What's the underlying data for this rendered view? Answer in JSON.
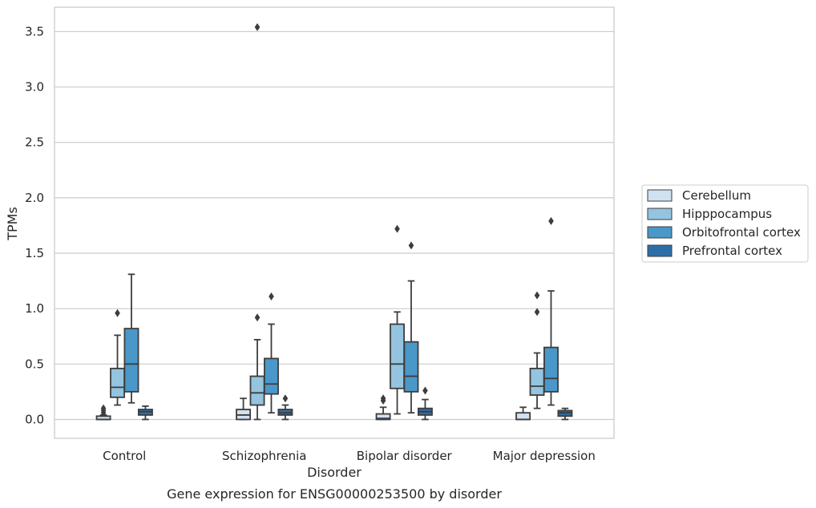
{
  "caption": "Gene expression for ENSG00000253500 by disorder",
  "chart_data": {
    "type": "boxplot",
    "title": "",
    "xlabel": "Disorder",
    "ylabel": "TPMs",
    "ylim": [
      -0.17,
      3.72
    ],
    "yticks": [
      0.0,
      0.5,
      1.0,
      1.5,
      2.0,
      2.5,
      3.0,
      3.5
    ],
    "ytick_labels": [
      "0.0",
      "0.5",
      "1.0",
      "1.5",
      "2.0",
      "2.5",
      "3.0",
      "3.5"
    ],
    "grid": "horizontal",
    "legend_position": "right",
    "categories": [
      "Control",
      "Schizophrenia",
      "Bipolar disorder",
      "Major depression"
    ],
    "series": [
      {
        "name": "Cerebellum",
        "color": "#d0e1f2",
        "boxes": [
          {
            "whislo": 0.0,
            "q1": 0.0,
            "med": 0.0,
            "q3": 0.03,
            "whishi": 0.04,
            "fliers": [
              0.06,
              0.08,
              0.1
            ]
          },
          {
            "whislo": 0.0,
            "q1": 0.0,
            "med": 0.04,
            "q3": 0.09,
            "whishi": 0.19,
            "fliers": []
          },
          {
            "whislo": 0.0,
            "q1": 0.0,
            "med": 0.01,
            "q3": 0.05,
            "whishi": 0.11,
            "fliers": [
              0.17,
              0.19
            ]
          },
          {
            "whislo": 0.0,
            "q1": 0.0,
            "med": 0.0,
            "q3": 0.06,
            "whishi": 0.11,
            "fliers": []
          }
        ]
      },
      {
        "name": "Hipppocampus",
        "color": "#94c4df",
        "boxes": [
          {
            "whislo": 0.13,
            "q1": 0.2,
            "med": 0.29,
            "q3": 0.46,
            "whishi": 0.76,
            "fliers": [
              0.96
            ]
          },
          {
            "whislo": 0.0,
            "q1": 0.13,
            "med": 0.24,
            "q3": 0.39,
            "whishi": 0.72,
            "fliers": [
              0.92,
              3.54
            ]
          },
          {
            "whislo": 0.05,
            "q1": 0.28,
            "med": 0.5,
            "q3": 0.86,
            "whishi": 0.97,
            "fliers": [
              1.72
            ]
          },
          {
            "whislo": 0.1,
            "q1": 0.22,
            "med": 0.3,
            "q3": 0.46,
            "whishi": 0.6,
            "fliers": [
              0.97,
              1.12
            ]
          }
        ]
      },
      {
        "name": "Orbitofrontal cortex",
        "color": "#4a98c9",
        "boxes": [
          {
            "whislo": 0.15,
            "q1": 0.25,
            "med": 0.5,
            "q3": 0.82,
            "whishi": 1.31,
            "fliers": []
          },
          {
            "whislo": 0.06,
            "q1": 0.23,
            "med": 0.32,
            "q3": 0.55,
            "whishi": 0.86,
            "fliers": [
              1.11
            ]
          },
          {
            "whislo": 0.06,
            "q1": 0.25,
            "med": 0.39,
            "q3": 0.7,
            "whishi": 1.25,
            "fliers": [
              1.57
            ]
          },
          {
            "whislo": 0.13,
            "q1": 0.25,
            "med": 0.37,
            "q3": 0.65,
            "whishi": 1.16,
            "fliers": [
              1.79
            ]
          }
        ]
      },
      {
        "name": "Prefrontal cortex",
        "color": "#2e6ea8",
        "boxes": [
          {
            "whislo": 0.0,
            "q1": 0.04,
            "med": 0.07,
            "q3": 0.09,
            "whishi": 0.12,
            "fliers": []
          },
          {
            "whislo": 0.0,
            "q1": 0.04,
            "med": 0.06,
            "q3": 0.09,
            "whishi": 0.13,
            "fliers": [
              0.19
            ]
          },
          {
            "whislo": 0.0,
            "q1": 0.04,
            "med": 0.07,
            "q3": 0.1,
            "whishi": 0.18,
            "fliers": [
              0.26
            ]
          },
          {
            "whislo": 0.0,
            "q1": 0.03,
            "med": 0.06,
            "q3": 0.08,
            "whishi": 0.1,
            "fliers": []
          }
        ]
      }
    ]
  }
}
